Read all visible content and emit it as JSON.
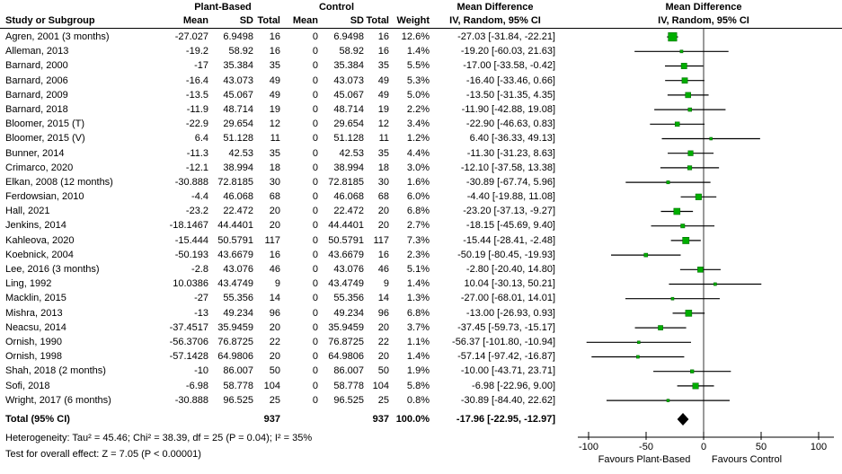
{
  "header": {
    "group1": "Plant-Based",
    "group2": "Control",
    "col_study": "Study or Subgroup",
    "col_mean": "Mean",
    "col_sd": "SD",
    "col_total": "Total",
    "col_weight": "Weight",
    "md_title": "Mean Difference",
    "md_subtitle": "IV, Random, 95% CI"
  },
  "footer": {
    "heterogeneity": "Heterogeneity: Tau² = 45.46; Chi² = 38.39, df = 25 (P = 0.04); I² = 35%",
    "overall_effect": "Test for overall effect: Z = 7.05 (P < 0.00001)"
  },
  "colors": {
    "square": "#00ae00",
    "diamond": "#000000",
    "ci_line": "#000000",
    "zero_line": "#333333",
    "axis": "#000000"
  },
  "chart_data": {
    "type": "forest",
    "title": "Mean Difference",
    "subtitle": "IV, Random, 95% CI",
    "x_axis": {
      "min": -100,
      "max": 100,
      "ticks": [
        -100,
        -50,
        0,
        50,
        100
      ],
      "favours_left": "Favours Plant-Based",
      "favours_right": "Favours Control"
    },
    "studies": [
      {
        "name": "Agren, 2001 (3 months)",
        "m1": "-27.027",
        "sd1": "6.9498",
        "n1": "16",
        "m2": "0",
        "sd2": "6.9498",
        "n2": "16",
        "w": "12.6%",
        "wv": 12.6,
        "md": "-27.03 [-31.84, -22.21]",
        "est": -27.03,
        "lo": -31.84,
        "hi": -22.21
      },
      {
        "name": "Alleman, 2013",
        "m1": "-19.2",
        "sd1": "58.92",
        "n1": "16",
        "m2": "0",
        "sd2": "58.92",
        "n2": "16",
        "w": "1.4%",
        "wv": 1.4,
        "md": "-19.20 [-60.03, 21.63]",
        "est": -19.2,
        "lo": -60.03,
        "hi": 21.63
      },
      {
        "name": "Barnard, 2000",
        "m1": "-17",
        "sd1": "35.384",
        "n1": "35",
        "m2": "0",
        "sd2": "35.384",
        "n2": "35",
        "w": "5.5%",
        "wv": 5.5,
        "md": "-17.00 [-33.58, -0.42]",
        "est": -17.0,
        "lo": -33.58,
        "hi": -0.42
      },
      {
        "name": "Barnard, 2006",
        "m1": "-16.4",
        "sd1": "43.073",
        "n1": "49",
        "m2": "0",
        "sd2": "43.073",
        "n2": "49",
        "w": "5.3%",
        "wv": 5.3,
        "md": "-16.40 [-33.46, 0.66]",
        "est": -16.4,
        "lo": -33.46,
        "hi": 0.66
      },
      {
        "name": "Barnard, 2009",
        "m1": "-13.5",
        "sd1": "45.067",
        "n1": "49",
        "m2": "0",
        "sd2": "45.067",
        "n2": "49",
        "w": "5.0%",
        "wv": 5.0,
        "md": "-13.50 [-31.35, 4.35]",
        "est": -13.5,
        "lo": -31.35,
        "hi": 4.35
      },
      {
        "name": "Barnard, 2018",
        "m1": "-11.9",
        "sd1": "48.714",
        "n1": "19",
        "m2": "0",
        "sd2": "48.714",
        "n2": "19",
        "w": "2.2%",
        "wv": 2.2,
        "md": "-11.90 [-42.88, 19.08]",
        "est": -11.9,
        "lo": -42.88,
        "hi": 19.08
      },
      {
        "name": "Bloomer, 2015 (T)",
        "m1": "-22.9",
        "sd1": "29.654",
        "n1": "12",
        "m2": "0",
        "sd2": "29.654",
        "n2": "12",
        "w": "3.4%",
        "wv": 3.4,
        "md": "-22.90 [-46.63, 0.83]",
        "est": -22.9,
        "lo": -46.63,
        "hi": 0.83
      },
      {
        "name": "Bloomer, 2015 (V)",
        "m1": "6.4",
        "sd1": "51.128",
        "n1": "11",
        "m2": "0",
        "sd2": "51.128",
        "n2": "11",
        "w": "1.2%",
        "wv": 1.2,
        "md": "6.40 [-36.33, 49.13]",
        "est": 6.4,
        "lo": -36.33,
        "hi": 49.13
      },
      {
        "name": "Bunner, 2014",
        "m1": "-11.3",
        "sd1": "42.53",
        "n1": "35",
        "m2": "0",
        "sd2": "42.53",
        "n2": "35",
        "w": "4.4%",
        "wv": 4.4,
        "md": "-11.30 [-31.23, 8.63]",
        "est": -11.3,
        "lo": -31.23,
        "hi": 8.63
      },
      {
        "name": "Crimarco, 2020",
        "m1": "-12.1",
        "sd1": "38.994",
        "n1": "18",
        "m2": "0",
        "sd2": "38.994",
        "n2": "18",
        "w": "3.0%",
        "wv": 3.0,
        "md": "-12.10 [-37.58, 13.38]",
        "est": -12.1,
        "lo": -37.58,
        "hi": 13.38
      },
      {
        "name": "Elkan, 2008 (12 months)",
        "m1": "-30.888",
        "sd1": "72.8185",
        "n1": "30",
        "m2": "0",
        "sd2": "72.8185",
        "n2": "30",
        "w": "1.6%",
        "wv": 1.6,
        "md": "-30.89 [-67.74, 5.96]",
        "est": -30.89,
        "lo": -67.74,
        "hi": 5.96
      },
      {
        "name": "Ferdowsian, 2010",
        "m1": "-4.4",
        "sd1": "46.068",
        "n1": "68",
        "m2": "0",
        "sd2": "46.068",
        "n2": "68",
        "w": "6.0%",
        "wv": 6.0,
        "md": "-4.40 [-19.88, 11.08]",
        "est": -4.4,
        "lo": -19.88,
        "hi": 11.08
      },
      {
        "name": "Hall, 2021",
        "m1": "-23.2",
        "sd1": "22.472",
        "n1": "20",
        "m2": "0",
        "sd2": "22.472",
        "n2": "20",
        "w": "6.8%",
        "wv": 6.8,
        "md": "-23.20 [-37.13, -9.27]",
        "est": -23.2,
        "lo": -37.13,
        "hi": -9.27
      },
      {
        "name": "Jenkins, 2014",
        "m1": "-18.1467",
        "sd1": "44.4401",
        "n1": "20",
        "m2": "0",
        "sd2": "44.4401",
        "n2": "20",
        "w": "2.7%",
        "wv": 2.7,
        "md": "-18.15 [-45.69, 9.40]",
        "est": -18.15,
        "lo": -45.69,
        "hi": 9.4
      },
      {
        "name": "Kahleova, 2020",
        "m1": "-15.444",
        "sd1": "50.5791",
        "n1": "117",
        "m2": "0",
        "sd2": "50.5791",
        "n2": "117",
        "w": "7.3%",
        "wv": 7.3,
        "md": "-15.44 [-28.41, -2.48]",
        "est": -15.44,
        "lo": -28.41,
        "hi": -2.48
      },
      {
        "name": "Koebnick, 2004",
        "m1": "-50.193",
        "sd1": "43.6679",
        "n1": "16",
        "m2": "0",
        "sd2": "43.6679",
        "n2": "16",
        "w": "2.3%",
        "wv": 2.3,
        "md": "-50.19 [-80.45, -19.93]",
        "est": -50.19,
        "lo": -80.45,
        "hi": -19.93
      },
      {
        "name": "Lee, 2016 (3 months)",
        "m1": "-2.8",
        "sd1": "43.076",
        "n1": "46",
        "m2": "0",
        "sd2": "43.076",
        "n2": "46",
        "w": "5.1%",
        "wv": 5.1,
        "md": "-2.80 [-20.40, 14.80]",
        "est": -2.8,
        "lo": -20.4,
        "hi": 14.8
      },
      {
        "name": "Ling, 1992",
        "m1": "10.0386",
        "sd1": "43.4749",
        "n1": "9",
        "m2": "0",
        "sd2": "43.4749",
        "n2": "9",
        "w": "1.4%",
        "wv": 1.4,
        "md": "10.04 [-30.13, 50.21]",
        "est": 10.04,
        "lo": -30.13,
        "hi": 50.21
      },
      {
        "name": "Macklin, 2015",
        "m1": "-27",
        "sd1": "55.356",
        "n1": "14",
        "m2": "0",
        "sd2": "55.356",
        "n2": "14",
        "w": "1.3%",
        "wv": 1.3,
        "md": "-27.00 [-68.01, 14.01]",
        "est": -27.0,
        "lo": -68.01,
        "hi": 14.01
      },
      {
        "name": "Mishra, 2013",
        "m1": "-13",
        "sd1": "49.234",
        "n1": "96",
        "m2": "0",
        "sd2": "49.234",
        "n2": "96",
        "w": "6.8%",
        "wv": 6.8,
        "md": "-13.00 [-26.93, 0.93]",
        "est": -13.0,
        "lo": -26.93,
        "hi": 0.93
      },
      {
        "name": "Neacsu, 2014",
        "m1": "-37.4517",
        "sd1": "35.9459",
        "n1": "20",
        "m2": "0",
        "sd2": "35.9459",
        "n2": "20",
        "w": "3.7%",
        "wv": 3.7,
        "md": "-37.45 [-59.73, -15.17]",
        "est": -37.45,
        "lo": -59.73,
        "hi": -15.17
      },
      {
        "name": "Ornish, 1990",
        "m1": "-56.3706",
        "sd1": "76.8725",
        "n1": "22",
        "m2": "0",
        "sd2": "76.8725",
        "n2": "22",
        "w": "1.1%",
        "wv": 1.1,
        "md": "-56.37 [-101.80, -10.94]",
        "est": -56.37,
        "lo": -101.8,
        "hi": -10.94
      },
      {
        "name": "Ornish, 1998",
        "m1": "-57.1428",
        "sd1": "64.9806",
        "n1": "20",
        "m2": "0",
        "sd2": "64.9806",
        "n2": "20",
        "w": "1.4%",
        "wv": 1.4,
        "md": "-57.14 [-97.42, -16.87]",
        "est": -57.14,
        "lo": -97.42,
        "hi": -16.87
      },
      {
        "name": "Shah, 2018 (2 months)",
        "m1": "-10",
        "sd1": "86.007",
        "n1": "50",
        "m2": "0",
        "sd2": "86.007",
        "n2": "50",
        "w": "1.9%",
        "wv": 1.9,
        "md": "-10.00 [-43.71, 23.71]",
        "est": -10.0,
        "lo": -43.71,
        "hi": 23.71
      },
      {
        "name": "Sofi, 2018",
        "m1": "-6.98",
        "sd1": "58.778",
        "n1": "104",
        "m2": "0",
        "sd2": "58.778",
        "n2": "104",
        "w": "5.8%",
        "wv": 5.8,
        "md": "-6.98 [-22.96, 9.00]",
        "est": -6.98,
        "lo": -22.96,
        "hi": 9.0
      },
      {
        "name": "Wright, 2017 (6 months)",
        "m1": "-30.888",
        "sd1": "96.525",
        "n1": "25",
        "m2": "0",
        "sd2": "96.525",
        "n2": "25",
        "w": "0.8%",
        "wv": 0.8,
        "md": "-30.89 [-84.40, 22.62]",
        "est": -30.89,
        "lo": -84.4,
        "hi": 22.62
      }
    ],
    "total": {
      "label": "Total (95% CI)",
      "n1": "937",
      "n2": "937",
      "w": "100.0%",
      "md": "-17.96 [-22.95, -12.97]",
      "est": -17.96,
      "lo": -22.95,
      "hi": -12.97
    }
  }
}
